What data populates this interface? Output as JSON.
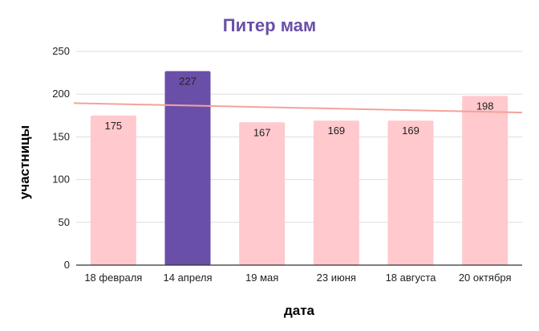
{
  "chart_data": {
    "type": "bar",
    "title": "Питер мам",
    "xlabel": "дата",
    "ylabel": "участницы",
    "categories": [
      "18 февраля",
      "14 апреля",
      "19 мая",
      "23 июня",
      "18 августа",
      "20 октября"
    ],
    "values": [
      175,
      227,
      167,
      169,
      169,
      198
    ],
    "ylim": [
      0,
      250
    ],
    "yticks": [
      0,
      50,
      100,
      150,
      200,
      250
    ],
    "grid": true,
    "legend": "none",
    "highlight_index": 1,
    "trendline": {
      "start": 189.5,
      "end": 178.5
    },
    "colors": {
      "title": "#6a4fa8",
      "bar": "#ffc9cd",
      "highlight_bar": "#6a4fa8",
      "trendline": "#f4a29b",
      "grid": "#dddddd",
      "axis": "#333333"
    }
  }
}
